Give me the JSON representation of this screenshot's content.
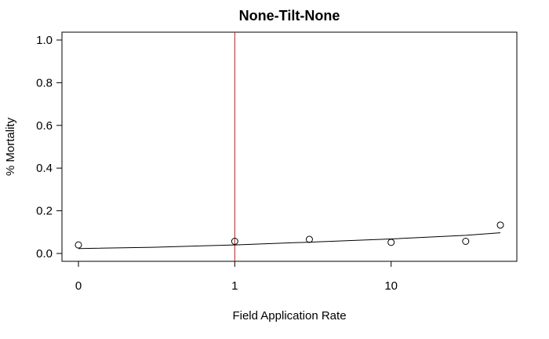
{
  "chart_data": {
    "type": "scatter",
    "title": "None-Tilt-None",
    "xlabel": "Field Application Rate",
    "ylabel": "% Mortality",
    "x_scale": "log10",
    "xlim": [
      0.1,
      50
    ],
    "ylim": [
      0,
      1.0
    ],
    "x_ticks": [
      {
        "value": 0.1,
        "label": "0"
      },
      {
        "value": 1,
        "label": "1"
      },
      {
        "value": 10,
        "label": "10"
      }
    ],
    "y_ticks": [
      {
        "value": 0.0,
        "label": "0.0"
      },
      {
        "value": 0.2,
        "label": "0.2"
      },
      {
        "value": 0.4,
        "label": "0.4"
      },
      {
        "value": 0.6,
        "label": "0.6"
      },
      {
        "value": 0.8,
        "label": "0.8"
      },
      {
        "value": 1.0,
        "label": "1.0"
      }
    ],
    "points": [
      {
        "x": 0.1,
        "y": 0.04
      },
      {
        "x": 1,
        "y": 0.057
      },
      {
        "x": 3,
        "y": 0.066
      },
      {
        "x": 10,
        "y": 0.052
      },
      {
        "x": 30,
        "y": 0.057
      },
      {
        "x": 50,
        "y": 0.133
      }
    ],
    "fit_curve": [
      {
        "x": 0.1,
        "y": 0.023
      },
      {
        "x": 0.3,
        "y": 0.029
      },
      {
        "x": 1,
        "y": 0.04
      },
      {
        "x": 3,
        "y": 0.053
      },
      {
        "x": 10,
        "y": 0.068
      },
      {
        "x": 30,
        "y": 0.085
      },
      {
        "x": 50,
        "y": 0.097
      }
    ],
    "vline": {
      "x": 1,
      "color": "#b22222"
    },
    "grid": false,
    "colors": {
      "points": "#000000",
      "curve": "#000000",
      "frame": "#000000"
    }
  }
}
